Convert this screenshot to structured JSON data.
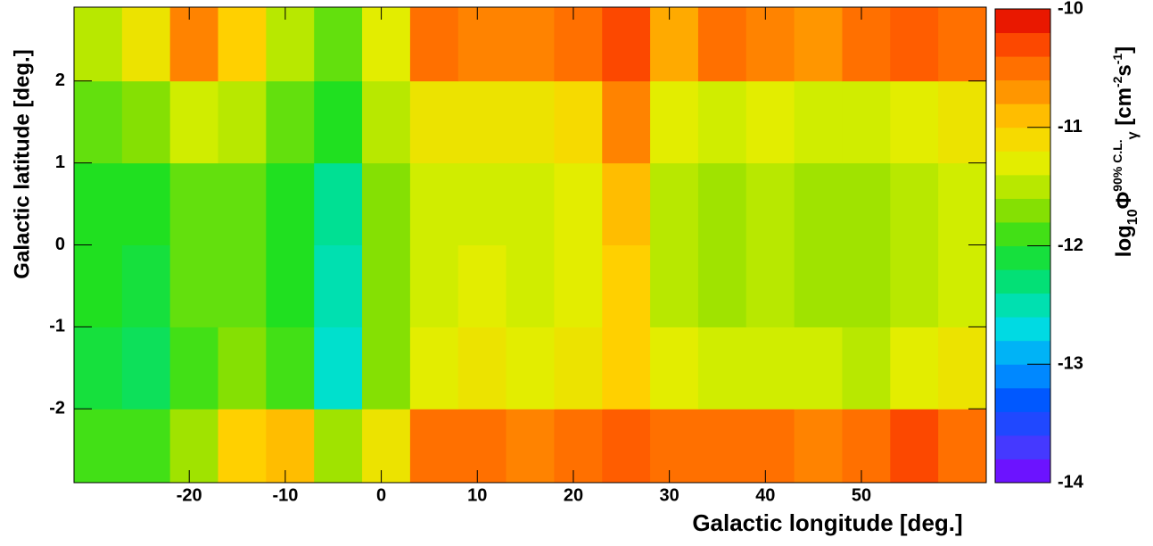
{
  "chart_data": {
    "type": "heatmap",
    "x_label": "Galactic longitude [deg.]",
    "y_label": "Galactic latitude [deg.]",
    "colorbar_label_parts": [
      {
        "text": "log"
      },
      {
        "text": "10",
        "shift": "sub"
      },
      {
        "text": "Φ"
      },
      {
        "text": "90% C.L.",
        "shift": "sup"
      },
      {
        "text": "γ",
        "shift": "sub"
      },
      {
        "text": " [cm"
      },
      {
        "text": "-2",
        "shift": "sup"
      },
      {
        "text": "s"
      },
      {
        "text": "-1",
        "shift": "sup"
      },
      {
        "text": "]"
      }
    ],
    "xlim": [
      -32,
      63
    ],
    "ylim": [
      -2.9,
      2.9
    ],
    "xticks": [
      -20,
      -10,
      0,
      10,
      20,
      30,
      40,
      50
    ],
    "yticks": [
      -2,
      -1,
      0,
      1,
      2
    ],
    "zlim": [
      -14,
      -10
    ],
    "zticks": [
      -14,
      -13,
      -12,
      -11,
      -10
    ],
    "colorscale": [
      "#7f00ff",
      "#3f3fff",
      "#0050ff",
      "#00a0ff",
      "#00e0e0",
      "#00e080",
      "#20e020",
      "#90e000",
      "#e0f000",
      "#ffd000",
      "#ff9000",
      "#ff5000",
      "#e00000"
    ],
    "xbins": [
      -32,
      -27,
      -22,
      -17,
      -12,
      -7,
      -2,
      3,
      8,
      13,
      18,
      23,
      28,
      33,
      38,
      43,
      48,
      53,
      58,
      63
    ],
    "ybins": [
      -2.9,
      -2,
      -1,
      0,
      1,
      2,
      2.9
    ],
    "z": [
      [
        -11.9,
        -11.9,
        -11.6,
        -11.0,
        -10.9,
        -11.6,
        -11.2,
        -10.5,
        -10.5,
        -10.6,
        -10.5,
        -10.4,
        -10.5,
        -10.5,
        -10.5,
        -10.6,
        -10.5,
        -10.3,
        -10.5
      ],
      [
        -12.1,
        -12.2,
        -11.9,
        -11.7,
        -11.9,
        -12.6,
        -11.7,
        -11.3,
        -11.2,
        -11.3,
        -11.2,
        -11.0,
        -11.3,
        -11.4,
        -11.4,
        -11.4,
        -11.5,
        -11.3,
        -11.2
      ],
      [
        -12.0,
        -12.1,
        -11.8,
        -11.8,
        -12.0,
        -12.5,
        -11.7,
        -11.4,
        -11.3,
        -11.4,
        -11.3,
        -11.0,
        -11.5,
        -11.6,
        -11.5,
        -11.6,
        -11.6,
        -11.5,
        -11.4
      ],
      [
        -12.0,
        -12.0,
        -11.8,
        -11.8,
        -12.0,
        -12.4,
        -11.7,
        -11.4,
        -11.4,
        -11.4,
        -11.3,
        -10.9,
        -11.5,
        -11.6,
        -11.5,
        -11.6,
        -11.6,
        -11.5,
        -11.4
      ],
      [
        -11.8,
        -11.7,
        -11.4,
        -11.5,
        -11.8,
        -12.0,
        -11.5,
        -11.2,
        -11.2,
        -11.2,
        -11.1,
        -10.6,
        -11.3,
        -11.4,
        -11.3,
        -11.4,
        -11.4,
        -11.3,
        -11.2
      ],
      [
        -11.5,
        -11.2,
        -10.6,
        -11.0,
        -11.5,
        -11.8,
        -11.3,
        -10.5,
        -10.6,
        -10.6,
        -10.5,
        -10.3,
        -10.8,
        -10.5,
        -10.6,
        -10.7,
        -10.5,
        -10.4,
        -10.5
      ]
    ]
  }
}
